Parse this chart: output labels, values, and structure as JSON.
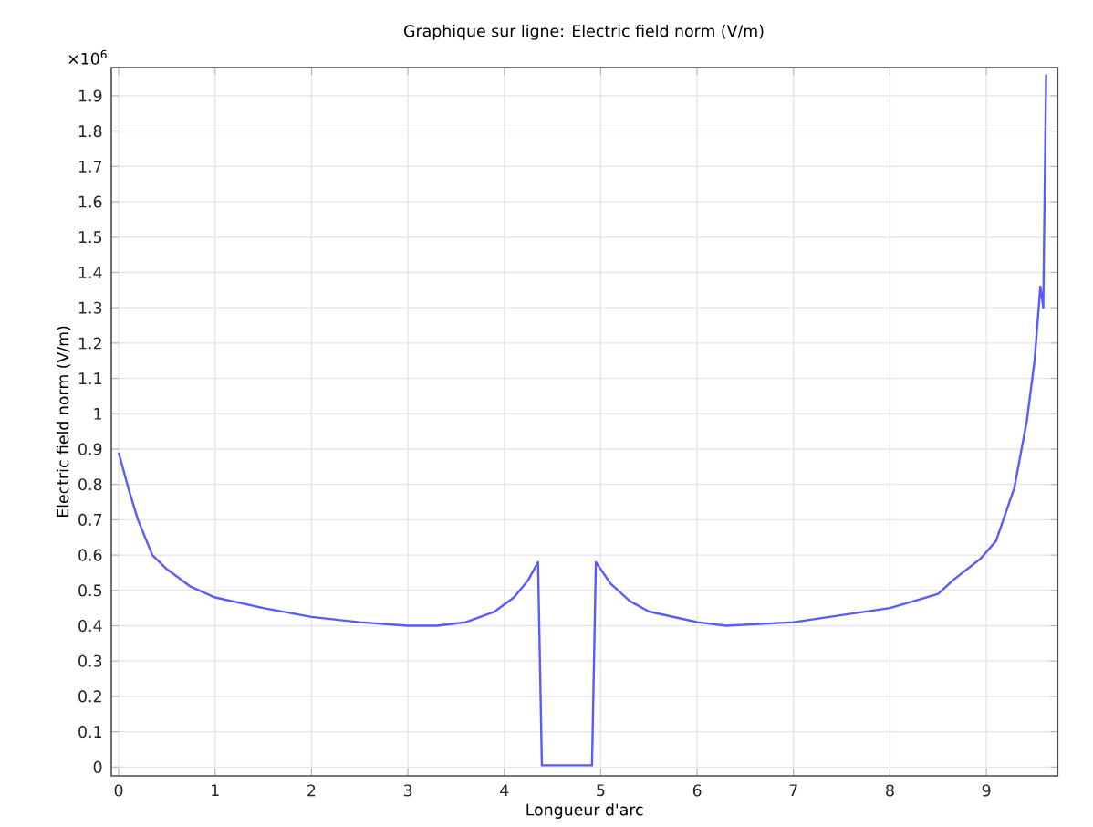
{
  "chart_data": {
    "type": "line",
    "title": "Graphique sur ligne: Electric field norm (V/m)",
    "xlabel": "Longueur d'arc",
    "ylabel": "Electric field norm (V/m)",
    "annotations": [
      "×10$^{6}$"
    ],
    "x": [
      0,
      0.1,
      0.2,
      0.35,
      0.5,
      0.75,
      1,
      1.5,
      2,
      2.5,
      3,
      3.3,
      3.6,
      3.9,
      4.1,
      4.25,
      4.35,
      4.39,
      4.91,
      4.95,
      5.1,
      5.3,
      5.5,
      6,
      6.3,
      7,
      7.5,
      8,
      8.5,
      8.66,
      8.94,
      9.1,
      9.29,
      9.42,
      9.5,
      9.56,
      9.59,
      9.62
    ],
    "series": [
      {
        "color": "#5a5aff",
        "values": [
          0.89,
          0.79,
          0.7,
          0.6,
          0.56,
          0.51,
          0.48,
          0.45,
          0.425,
          0.41,
          0.4,
          0.4,
          0.41,
          0.44,
          0.48,
          0.53,
          0.58,
          0.005,
          0.005,
          0.58,
          0.52,
          0.47,
          0.44,
          0.41,
          0.4,
          0.41,
          0.43,
          0.45,
          0.49,
          0.53,
          0.59,
          0.64,
          0.79,
          0.98,
          1.15,
          1.36,
          1.3,
          1.96
        ]
      }
    ],
    "xlim": [
      -0.076,
      9.74
    ],
    "ylim": [
      -0.025,
      1.98
    ],
    "xticks": [
      0,
      1,
      2,
      3,
      4,
      5,
      6,
      7,
      8,
      9
    ],
    "yticks": [
      0,
      0.1,
      0.2,
      0.3,
      0.4,
      0.5,
      0.6,
      0.7,
      0.8,
      0.9,
      1,
      1.1,
      1.2,
      1.3,
      1.4,
      1.5,
      1.6,
      1.7,
      1.8,
      1.9
    ],
    "grid": true,
    "line_style": "solid",
    "marker": "none"
  }
}
